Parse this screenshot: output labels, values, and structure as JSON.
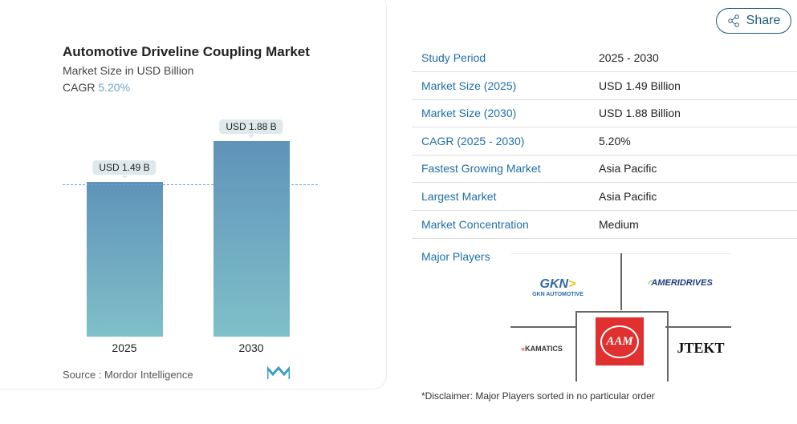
{
  "chart_data": {
    "type": "bar",
    "title": "Automotive Driveline Coupling Market",
    "subtitle": "Market Size in USD Billion",
    "cagr_label": "CAGR",
    "cagr_value": "5.20%",
    "categories": [
      "2025",
      "2030"
    ],
    "values": [
      1.49,
      1.88
    ],
    "data_labels": [
      "USD 1.49 B",
      "USD 1.88 B"
    ],
    "ylim": [
      0,
      1.88
    ],
    "source": "Source : Mordor Intelligence"
  },
  "share_label": "Share",
  "table": [
    {
      "k": "Study Period",
      "v": "2025 - 2030"
    },
    {
      "k": "Market Size (2025)",
      "v": "USD 1.49 Billion"
    },
    {
      "k": "Market Size (2030)",
      "v": "USD 1.88 Billion"
    },
    {
      "k": "CAGR (2025 - 2030)",
      "v": "5.20%"
    },
    {
      "k": "Fastest Growing Market",
      "v": "Asia Pacific"
    },
    {
      "k": "Largest Market",
      "v": "Asia Pacific"
    },
    {
      "k": "Market Concentration",
      "v": "Medium"
    }
  ],
  "major_players_label": "Major Players",
  "players": [
    "GKN AUTOMOTIVE",
    "AMERIDRIVES",
    "KAMATICS",
    "AAM",
    "JTEKT"
  ],
  "disclaimer": "*Disclaimer: Major Players sorted in no particular order"
}
